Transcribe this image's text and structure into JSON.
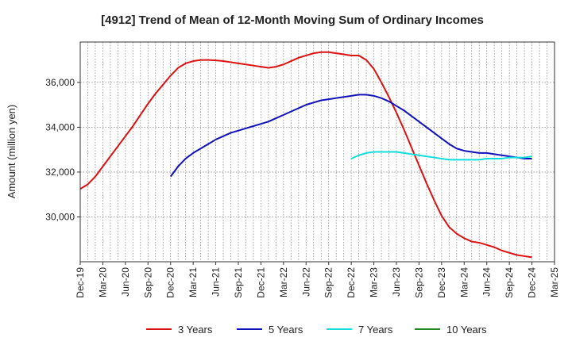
{
  "chart_data": {
    "type": "line",
    "title": "[4912]  Trend of Mean of 12-Month Moving Sum of Ordinary Incomes",
    "xlabel": "",
    "ylabel": "Amount (million yen)",
    "ylim": [
      28000,
      37800
    ],
    "yticks": [
      30000,
      32000,
      34000,
      36000
    ],
    "ytick_labels": [
      "30,000",
      "32,000",
      "34,000",
      "36,000"
    ],
    "x_range": [
      "2019-12",
      "2025-03"
    ],
    "xtick_labels": [
      "Dec-19",
      "Mar-20",
      "Jun-20",
      "Sep-20",
      "Dec-20",
      "Mar-21",
      "Jun-21",
      "Sep-21",
      "Dec-21",
      "Mar-22",
      "Jun-22",
      "Sep-22",
      "Dec-22",
      "Mar-23",
      "Jun-23",
      "Sep-23",
      "Dec-23",
      "Mar-24",
      "Jun-24",
      "Sep-24",
      "Dec-24",
      "Mar-25"
    ],
    "grid": true,
    "legend_position": "bottom",
    "series": [
      {
        "name": "3 Years",
        "color": "#dd1111",
        "x": [
          0,
          1,
          2,
          3,
          4,
          5,
          6,
          7,
          8,
          9,
          10,
          11,
          12,
          13,
          14,
          15,
          16,
          17,
          18,
          19,
          20,
          21,
          22,
          23,
          24,
          25,
          26,
          27,
          28,
          29,
          30,
          31,
          32,
          33,
          34,
          35,
          36,
          37,
          38,
          39,
          40,
          41,
          42,
          43,
          44,
          45,
          46,
          47,
          48,
          49,
          50,
          51,
          52,
          53,
          54,
          55,
          56,
          57,
          58,
          59,
          60
        ],
        "values": [
          31250,
          31450,
          31800,
          32250,
          32700,
          33150,
          33600,
          34050,
          34550,
          35050,
          35500,
          35900,
          36300,
          36650,
          36850,
          36950,
          37000,
          37000,
          36980,
          36950,
          36900,
          36850,
          36800,
          36750,
          36700,
          36650,
          36700,
          36800,
          36950,
          37100,
          37200,
          37300,
          37350,
          37350,
          37300,
          37250,
          37200,
          37200,
          37000,
          36600,
          36000,
          35350,
          34650,
          33900,
          33100,
          32300,
          31500,
          30750,
          30050,
          29550,
          29250,
          29050,
          28900,
          28850,
          28750,
          28650,
          28500,
          28400,
          28300,
          28250,
          28200
        ]
      },
      {
        "name": "5 Years",
        "color": "#1111bb",
        "x": [
          12,
          13,
          14,
          15,
          16,
          17,
          18,
          19,
          20,
          21,
          22,
          23,
          24,
          25,
          26,
          27,
          28,
          29,
          30,
          31,
          32,
          33,
          34,
          35,
          36,
          37,
          38,
          39,
          40,
          41,
          42,
          43,
          44,
          45,
          46,
          47,
          48,
          49,
          50,
          51,
          52,
          53,
          54,
          55,
          56,
          57,
          58,
          59,
          60
        ],
        "values": [
          31800,
          32250,
          32600,
          32850,
          33050,
          33250,
          33450,
          33600,
          33750,
          33850,
          33950,
          34050,
          34150,
          34250,
          34400,
          34550,
          34700,
          34850,
          35000,
          35100,
          35200,
          35250,
          35300,
          35350,
          35400,
          35450,
          35450,
          35400,
          35300,
          35150,
          34950,
          34750,
          34500,
          34250,
          34000,
          33750,
          33500,
          33250,
          33050,
          32950,
          32900,
          32850,
          32850,
          32800,
          32750,
          32700,
          32650,
          32600,
          32600
        ]
      },
      {
        "name": "7 Years",
        "color": "#11dddd",
        "x": [
          36,
          37,
          38,
          39,
          40,
          41,
          42,
          43,
          44,
          45,
          46,
          47,
          48,
          49,
          50,
          51,
          52,
          53,
          54,
          55,
          56,
          57,
          58,
          59,
          60
        ],
        "values": [
          32600,
          32750,
          32850,
          32900,
          32900,
          32900,
          32900,
          32850,
          32800,
          32750,
          32700,
          32650,
          32600,
          32550,
          32550,
          32550,
          32550,
          32550,
          32600,
          32600,
          32600,
          32650,
          32650,
          32650,
          32700
        ]
      },
      {
        "name": "10 Years",
        "color": "#228822",
        "x": [],
        "values": []
      }
    ]
  }
}
